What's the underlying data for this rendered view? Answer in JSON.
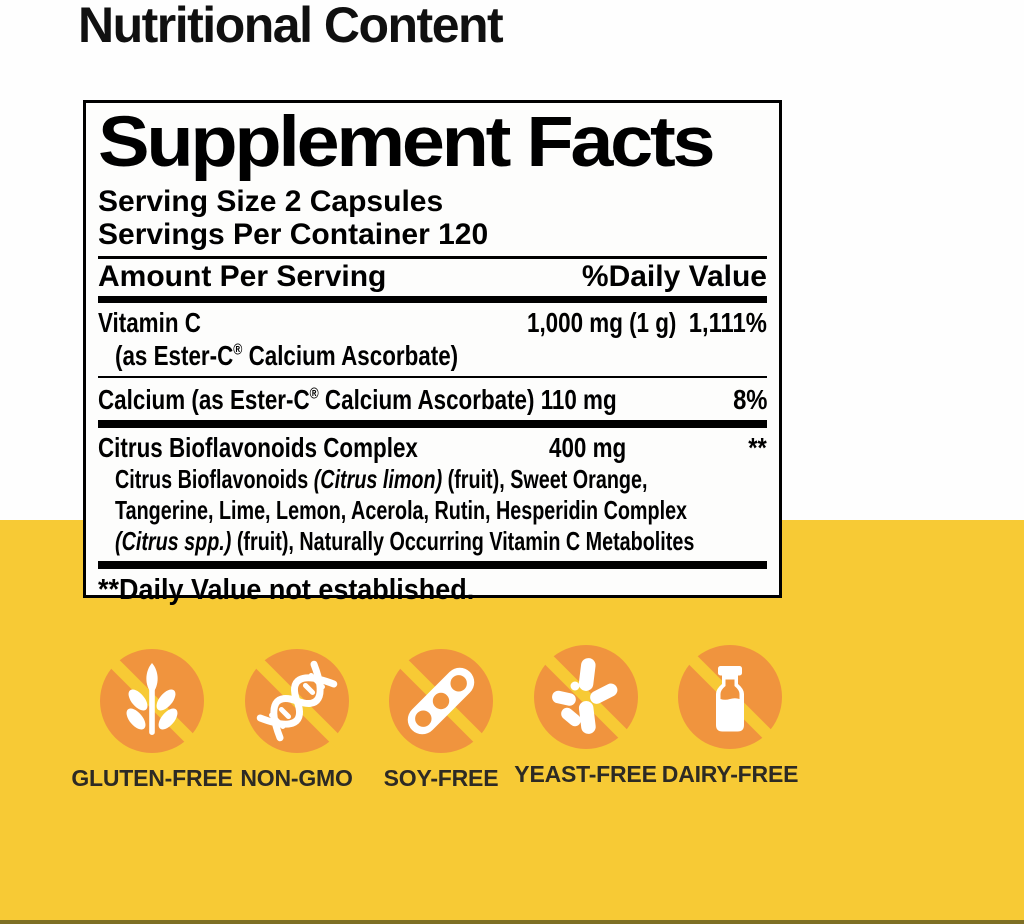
{
  "page": {
    "title": "Nutritional Content"
  },
  "colors": {
    "background_yellow": "#f7ca35",
    "badge_orange": "#f0943e",
    "panel_background": "#fdfdfc",
    "panel_border": "#000000",
    "text_black": "#000000",
    "badge_label_dark": "#2d2a24"
  },
  "panel": {
    "title": "Supplement Facts",
    "serving_size": "Serving Size 2 Capsules",
    "servings_per_container": "Servings Per Container 120",
    "column_left": "Amount Per Serving",
    "column_right": "%Daily Value",
    "rows": {
      "vitamin_c": {
        "name": "Vitamin C",
        "detail_segments": [
          {
            "text": "(as Ester-C"
          },
          {
            "text": "®",
            "sup": true
          },
          {
            "text": " Calcium Ascorbate)"
          }
        ],
        "amount": "1,000 mg (1 g)",
        "dv": "1,111%"
      },
      "calcium": {
        "name_segments": [
          {
            "text": "Calcium (as Ester-C"
          },
          {
            "text": "®",
            "sup": true
          },
          {
            "text": " Calcium Ascorbate) 110 mg"
          }
        ],
        "dv": "8%"
      },
      "citrus": {
        "name": "Citrus Bioflavonoids Complex",
        "amount": "400 mg",
        "dv": "**",
        "description_lines": [
          [
            {
              "text": "Citrus Bioflavonoids "
            },
            {
              "text": "(Citrus limon)",
              "italic": true
            },
            {
              "text": " (fruit), Sweet Orange,"
            }
          ],
          [
            {
              "text": "Tangerine, Lime, Lemon, Acerola, Rutin, Hesperidin Complex"
            }
          ],
          [
            {
              "text": "(Citrus spp.)",
              "italic": true
            },
            {
              "text": " (fruit), Naturally Occurring Vitamin C Metabolites"
            }
          ]
        ]
      }
    },
    "footnote": "**Daily Value not established."
  },
  "badges": [
    {
      "label": "GLUTEN-FREE",
      "icon": "wheat-icon"
    },
    {
      "label": "NON-GMO",
      "icon": "dna-icon"
    },
    {
      "label": "SOY-FREE",
      "icon": "soy-pod-icon"
    },
    {
      "label": "YEAST-FREE",
      "icon": "yeast-cells-icon"
    },
    {
      "label": "DAIRY-FREE",
      "icon": "milk-bottle-icon"
    }
  ]
}
